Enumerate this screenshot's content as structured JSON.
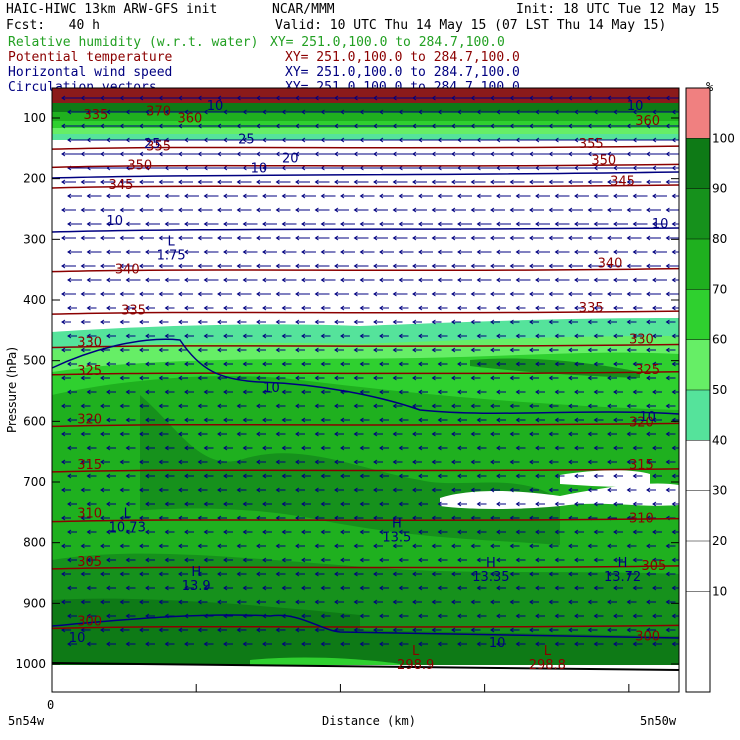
{
  "header": {
    "title_left": "HAIC-HIWC 13km ARW-GFS init",
    "title_mid": "NCAR/MMM",
    "init": "Init: 18 UTC Tue 12 May 15",
    "fcst": "Fcst:   40 h",
    "valid": "Valid: 10 UTC Thu 14 May 15 (07 LST Thu 14 May 15)"
  },
  "legend_lines": [
    {
      "label": "Relative humidity (w.r.t. water)",
      "xy": "XY= 251.0,100.0 to 284.7,100.0",
      "color": "#22a022"
    },
    {
      "label": "Potential temperature",
      "xy": "XY= 251.0,100.0 to 284.7,100.0",
      "color": "#8b0000"
    },
    {
      "label": "Horizontal wind speed",
      "xy": "XY= 251.0,100.0 to 284.7,100.0",
      "color": "#000080"
    },
    {
      "label": "Circulation vectors",
      "xy": "XY= 251.0,100.0 to 284.7,100.0",
      "color": "#000080"
    }
  ],
  "chart_data": {
    "type": "heatmap",
    "ylabel": "Pressure (hPa)",
    "xlabel": "Distance (km)",
    "y_ticks": [
      100,
      200,
      300,
      400,
      500,
      600,
      700,
      800,
      900,
      1000
    ],
    "x_tick_label": "0",
    "x_left_label": "5n54w",
    "x_right_label": "5n50w",
    "ylim": [
      1050,
      70
    ],
    "colorbar": {
      "unit": "%",
      "levels": [
        10,
        20,
        30,
        40,
        50,
        60,
        70,
        80,
        90,
        100
      ],
      "colors": [
        "#ffffff",
        "#ffffff",
        "#ffffff",
        "#ffffff",
        "#ffffff",
        "#55e39b",
        "#66ee66",
        "#2fd02f",
        "#1fb01f",
        "#16911c",
        "#0e7a16",
        "#f08080"
      ]
    },
    "theta_contours": [
      {
        "value": 355,
        "p": 148
      },
      {
        "value": 350,
        "p": 178
      },
      {
        "value": 345,
        "p": 212
      },
      {
        "value": 340,
        "p": 350
      },
      {
        "value": 335,
        "p": 420
      },
      {
        "value": 330,
        "p": 475
      },
      {
        "value": 325,
        "p": 520
      },
      {
        "value": 320,
        "p": 605
      },
      {
        "value": 315,
        "p": 680
      },
      {
        "value": 310,
        "p": 762
      },
      {
        "value": 305,
        "p": 840
      },
      {
        "value": 300,
        "p": 938
      }
    ],
    "theta_labels": [
      {
        "text": "335",
        "x": 0.07,
        "p": 100
      },
      {
        "text": "370",
        "x": 0.17,
        "p": 94
      },
      {
        "text": "360",
        "x": 0.22,
        "p": 106
      },
      {
        "text": "355",
        "x": 0.17,
        "p": 152
      },
      {
        "text": "355",
        "x": 0.86,
        "p": 148
      },
      {
        "text": "350",
        "x": 0.14,
        "p": 183
      },
      {
        "text": "350",
        "x": 0.88,
        "p": 175
      },
      {
        "text": "345",
        "x": 0.11,
        "p": 215
      },
      {
        "text": "345",
        "x": 0.91,
        "p": 210
      },
      {
        "text": "340",
        "x": 0.12,
        "p": 355
      },
      {
        "text": "340",
        "x": 0.89,
        "p": 345
      },
      {
        "text": "335",
        "x": 0.13,
        "p": 422
      },
      {
        "text": "335",
        "x": 0.86,
        "p": 418
      },
      {
        "text": "330",
        "x": 0.06,
        "p": 475
      },
      {
        "text": "330",
        "x": 0.94,
        "p": 470
      },
      {
        "text": "325",
        "x": 0.06,
        "p": 522
      },
      {
        "text": "325",
        "x": 0.95,
        "p": 520
      },
      {
        "text": "320",
        "x": 0.06,
        "p": 602
      },
      {
        "text": "320",
        "x": 0.94,
        "p": 607
      },
      {
        "text": "315",
        "x": 0.06,
        "p": 677
      },
      {
        "text": "315",
        "x": 0.94,
        "p": 677
      },
      {
        "text": "310",
        "x": 0.06,
        "p": 757
      },
      {
        "text": "310",
        "x": 0.94,
        "p": 765
      },
      {
        "text": "305",
        "x": 0.06,
        "p": 837
      },
      {
        "text": "305",
        "x": 0.96,
        "p": 843
      },
      {
        "text": "300",
        "x": 0.06,
        "p": 935
      },
      {
        "text": "300",
        "x": 0.95,
        "p": 960
      },
      {
        "text": "360",
        "x": 0.95,
        "p": 110
      }
    ],
    "wind_labels": [
      {
        "text": "10",
        "x": 0.26,
        "p": 85
      },
      {
        "text": "10",
        "x": 0.93,
        "p": 85
      },
      {
        "text": "25",
        "x": 0.16,
        "p": 148
      },
      {
        "text": "25",
        "x": 0.31,
        "p": 140
      },
      {
        "text": "20",
        "x": 0.38,
        "p": 172
      },
      {
        "text": "10",
        "x": 0.33,
        "p": 188
      },
      {
        "text": "10",
        "x": 0.1,
        "p": 275
      },
      {
        "text": "10",
        "x": 0.97,
        "p": 280
      },
      {
        "text": "10",
        "x": 0.35,
        "p": 550
      },
      {
        "text": "10",
        "x": 0.95,
        "p": 598
      },
      {
        "text": "10",
        "x": 0.04,
        "p": 962
      },
      {
        "text": "10",
        "x": 0.71,
        "p": 970
      }
    ],
    "extrema_labels": [
      {
        "mark": "L",
        "value": "1.75",
        "x": 0.19,
        "p": 330
      },
      {
        "mark": "L",
        "value": "10.73",
        "x": 0.12,
        "p": 778
      },
      {
        "mark": "H",
        "value": "13.5",
        "x": 0.55,
        "p": 795
      },
      {
        "mark": "H",
        "value": "13.9",
        "x": 0.23,
        "p": 875
      },
      {
        "mark": "H",
        "value": "13.35",
        "x": 0.7,
        "p": 860
      },
      {
        "mark": "H",
        "value": "13.72",
        "x": 0.91,
        "p": 860
      },
      {
        "mark": "L",
        "value": "298.9",
        "x": 0.58,
        "p": 1005
      },
      {
        "mark": "L",
        "value": "298.8",
        "x": 0.79,
        "p": 1005
      }
    ]
  }
}
